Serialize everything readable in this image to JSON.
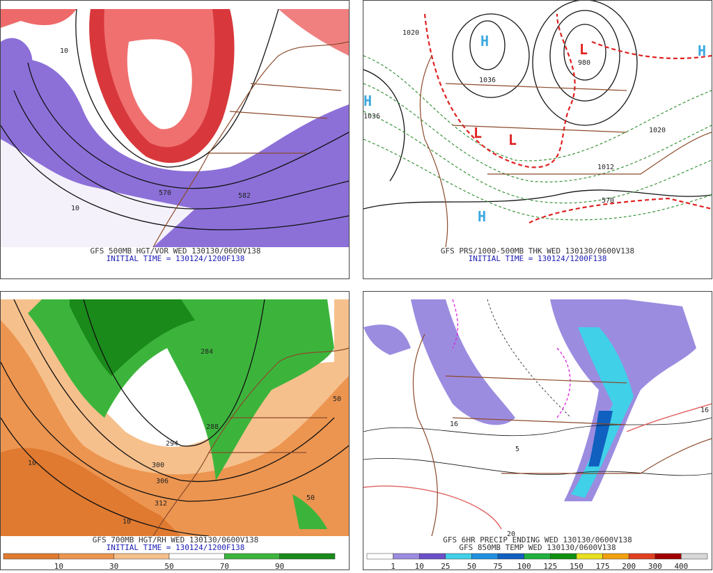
{
  "panels": [
    {
      "caption": [
        "GFS 500MB HGT/VOR WED 130130/0600V138",
        "INITIAL TIME = 130124/1200F138"
      ],
      "labels": [
        "570",
        "582",
        "10",
        "10"
      ]
    },
    {
      "caption": [
        "GFS PRS/1000-500MB THK WED 130130/0600V138",
        "INITIAL TIME = 130124/1200F138"
      ],
      "labels": [
        "1020",
        "1036",
        "1036",
        "980",
        "1020",
        "1012",
        "570",
        "H",
        "H",
        "H",
        "H",
        "L",
        "L",
        "L"
      ]
    },
    {
      "caption": [
        "GFS 700MB HGT/RH WED 130130/0600V138",
        "INITIAL TIME = 130124/1200F138"
      ],
      "labels": [
        "284",
        "288",
        "294",
        "300",
        "306",
        "312",
        "10",
        "10",
        "50",
        "50"
      ]
    },
    {
      "caption": [
        "GFS 6HR PRECIP ENDING WED 130130/0600V138",
        "GFS 850MB TEMP WED 130130/0600V138"
      ],
      "labels": [
        "16",
        "16",
        "20",
        "5"
      ]
    }
  ],
  "colorbars": [
    {
      "labels": [
        "10",
        "30",
        "50",
        "70",
        "90"
      ],
      "colors": [
        "#e07a30",
        "#ec9550",
        "#f6c08c",
        "#ffffff",
        "#3cb43c",
        "#1a8a1a"
      ]
    },
    {
      "labels": [
        "1",
        "10",
        "25",
        "50",
        "75",
        "100",
        "125",
        "150",
        "175",
        "200",
        "300",
        "400"
      ],
      "colors": [
        "#ffffff",
        "#9c8ce0",
        "#6a50c8",
        "#40d0e8",
        "#2090e0",
        "#1060c0",
        "#20b040",
        "#109010",
        "#e8e020",
        "#f0a010",
        "#e04020",
        "#a00000",
        "#d8d8d8"
      ]
    }
  ]
}
